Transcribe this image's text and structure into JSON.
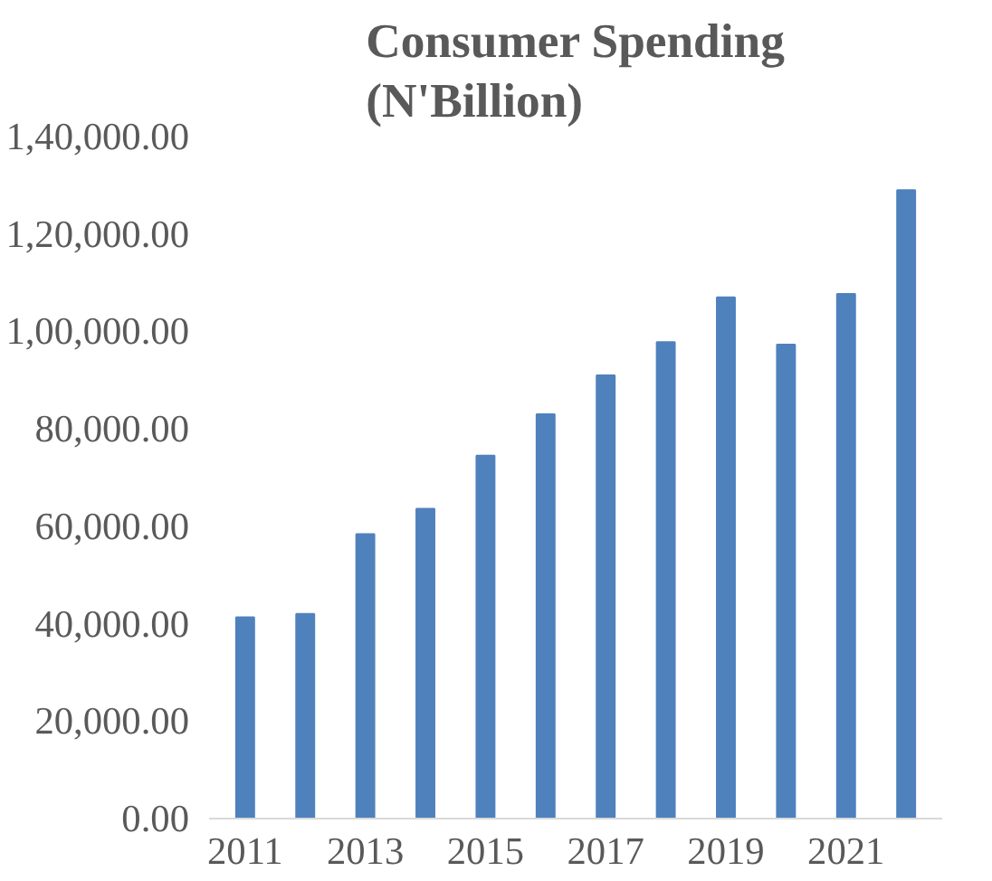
{
  "chart_data": {
    "type": "bar",
    "title": "Consumer Spending\n(N'Billion)",
    "categories": [
      "2011",
      null,
      "2013",
      null,
      "2015",
      null,
      "2017",
      null,
      "2019",
      null,
      "2021",
      null
    ],
    "values": [
      41300,
      42000,
      58400,
      63600,
      74500,
      83000,
      91000,
      97800,
      107000,
      97300,
      107700,
      129000
    ],
    "color": "#4f81bd",
    "ylim": [
      0,
      140000
    ],
    "yticks": [
      {
        "value": 0,
        "label": "0.00"
      },
      {
        "value": 20000,
        "label": "20,000.00"
      },
      {
        "value": 40000,
        "label": "40,000.00"
      },
      {
        "value": 60000,
        "label": "60,000.00"
      },
      {
        "value": 80000,
        "label": "80,000.00"
      },
      {
        "value": 100000,
        "label": "1,00,000.00"
      },
      {
        "value": 120000,
        "label": "1,20,000.00"
      },
      {
        "value": 140000,
        "label": "1,40,000.00"
      }
    ],
    "grid": false
  }
}
